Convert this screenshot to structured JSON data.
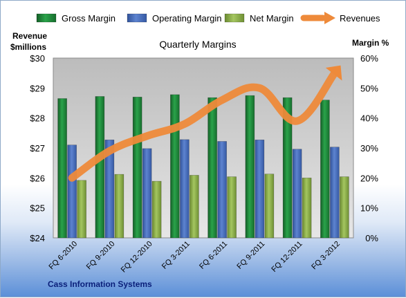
{
  "chart_data": {
    "type": "bar",
    "title": "Quarterly Margins",
    "subtitle": "",
    "left_axis": {
      "title_lines": [
        "Revenue",
        "$millions"
      ],
      "range": [
        24,
        30
      ],
      "ticks": [
        "$24",
        "$25",
        "$26",
        "$27",
        "$28",
        "$29",
        "$30"
      ]
    },
    "right_axis": {
      "title": "Margin %",
      "range": [
        0,
        60
      ],
      "ticks": [
        "0%",
        "10%",
        "20%",
        "30%",
        "40%",
        "50%",
        "60%"
      ]
    },
    "categories": [
      "FQ 6-2010",
      "FQ 9-2010",
      "FQ 12-2010",
      "FQ 3-2011",
      "FQ 6-2011",
      "FQ 9-2011",
      "FQ 12-2011",
      "FQ 3-2012"
    ],
    "series": [
      {
        "name": "Gross Margin",
        "kind": "bar",
        "axis": "right",
        "color": "#1f8a3a",
        "values": [
          46.5,
          47.2,
          47.0,
          47.8,
          46.8,
          47.5,
          46.8,
          46.0
        ]
      },
      {
        "name": "Operating Margin",
        "kind": "bar",
        "axis": "right",
        "color": "#4a6fc0",
        "values": [
          31.0,
          32.7,
          29.8,
          32.8,
          32.2,
          32.7,
          29.6,
          30.3
        ]
      },
      {
        "name": "Net Margin",
        "kind": "bar",
        "axis": "right",
        "color": "#8db04a",
        "values": [
          19.2,
          21.2,
          18.9,
          20.9,
          20.4,
          21.3,
          20.0,
          20.4
        ]
      },
      {
        "name": "Revenues",
        "kind": "line",
        "axis": "left",
        "color": "#ee8a3a",
        "values": [
          26.0,
          26.9,
          27.4,
          27.8,
          28.6,
          29.0,
          27.9,
          29.5
        ]
      }
    ],
    "legend_position": "top",
    "grid": false,
    "footer": "Cass Information Systems"
  }
}
